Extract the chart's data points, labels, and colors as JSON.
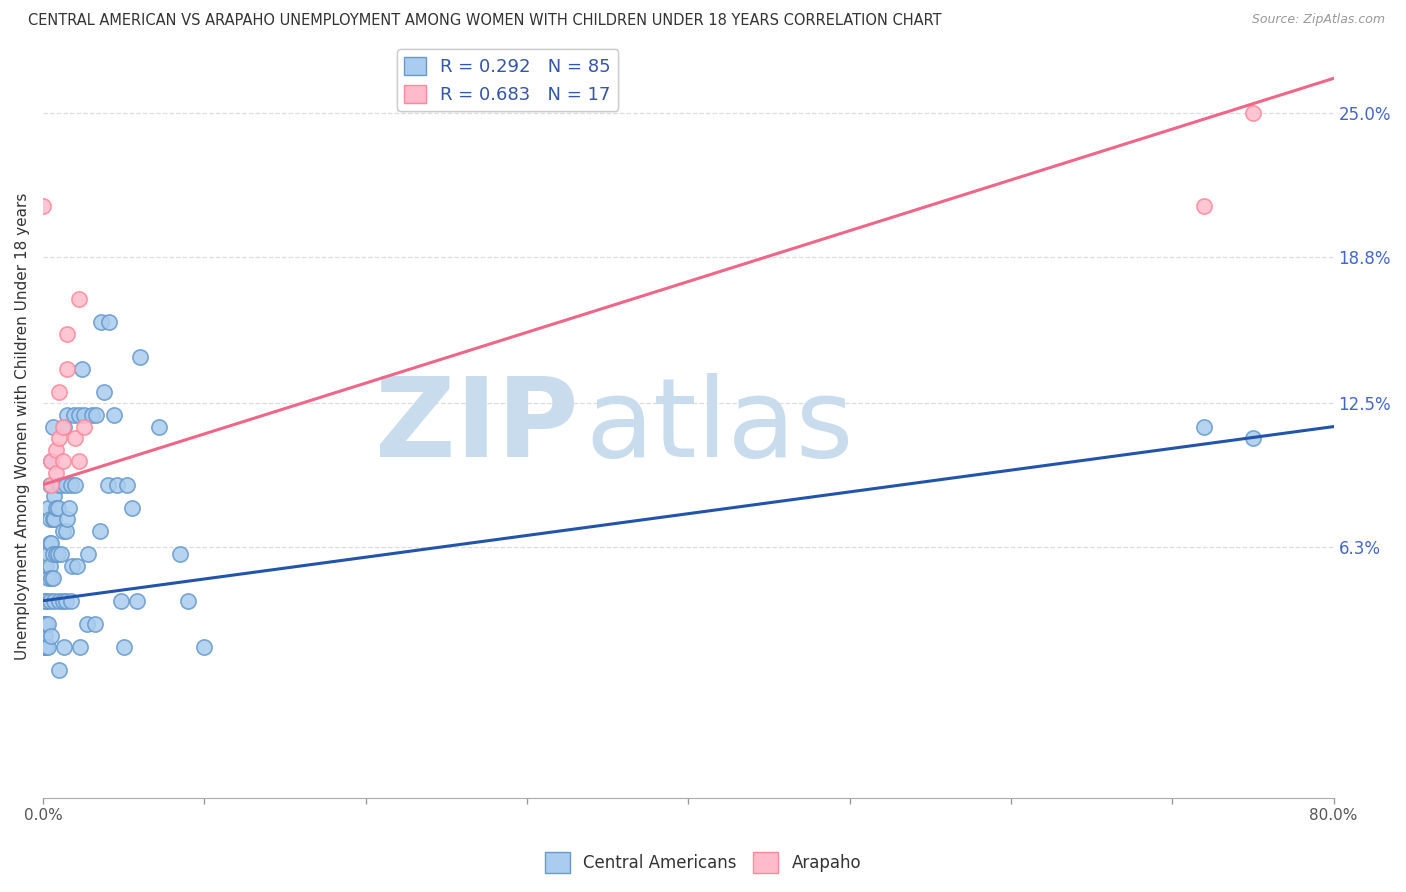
{
  "title": "CENTRAL AMERICAN VS ARAPAHO UNEMPLOYMENT AMONG WOMEN WITH CHILDREN UNDER 18 YEARS CORRELATION CHART",
  "source": "Source: ZipAtlas.com",
  "ylabel": "Unemployment Among Women with Children Under 18 years",
  "ytick_labels": [
    "6.3%",
    "12.5%",
    "18.8%",
    "25.0%"
  ],
  "ytick_values": [
    0.063,
    0.125,
    0.188,
    0.25
  ],
  "xlim": [
    0.0,
    0.8
  ],
  "ylim": [
    -0.045,
    0.275
  ],
  "color_blue": "#AACCEE",
  "color_blue_edge": "#6699CC",
  "color_pink": "#FFBBCC",
  "color_pink_edge": "#FF8899",
  "line_blue": "#2255AA",
  "line_pink": "#EE6688",
  "blue_trend_x": [
    0.0,
    0.8
  ],
  "blue_trend_y": [
    0.04,
    0.115
  ],
  "pink_trend_x": [
    0.0,
    0.8
  ],
  "pink_trend_y": [
    0.09,
    0.265
  ],
  "central_american_x": [
    0.0,
    0.0,
    0.0,
    0.001,
    0.001,
    0.001,
    0.001,
    0.002,
    0.002,
    0.002,
    0.002,
    0.003,
    0.003,
    0.003,
    0.003,
    0.003,
    0.004,
    0.004,
    0.004,
    0.004,
    0.004,
    0.005,
    0.005,
    0.005,
    0.005,
    0.006,
    0.006,
    0.006,
    0.006,
    0.007,
    0.007,
    0.007,
    0.008,
    0.008,
    0.009,
    0.009,
    0.01,
    0.01,
    0.01,
    0.011,
    0.011,
    0.012,
    0.012,
    0.013,
    0.013,
    0.014,
    0.014,
    0.014,
    0.015,
    0.015,
    0.016,
    0.017,
    0.017,
    0.018,
    0.019,
    0.02,
    0.021,
    0.022,
    0.023,
    0.024,
    0.025,
    0.027,
    0.028,
    0.03,
    0.032,
    0.033,
    0.035,
    0.036,
    0.038,
    0.04,
    0.041,
    0.044,
    0.046,
    0.048,
    0.05,
    0.052,
    0.055,
    0.058,
    0.06,
    0.072,
    0.085,
    0.09,
    0.1,
    0.72,
    0.75
  ],
  "central_american_y": [
    0.02,
    0.025,
    0.03,
    0.02,
    0.025,
    0.03,
    0.04,
    0.02,
    0.03,
    0.04,
    0.055,
    0.02,
    0.03,
    0.05,
    0.06,
    0.08,
    0.04,
    0.055,
    0.065,
    0.075,
    0.09,
    0.025,
    0.05,
    0.065,
    0.1,
    0.05,
    0.06,
    0.075,
    0.115,
    0.04,
    0.075,
    0.085,
    0.06,
    0.08,
    0.06,
    0.08,
    0.01,
    0.04,
    0.09,
    0.06,
    0.09,
    0.04,
    0.07,
    0.02,
    0.115,
    0.04,
    0.07,
    0.09,
    0.075,
    0.12,
    0.08,
    0.04,
    0.09,
    0.055,
    0.12,
    0.09,
    0.055,
    0.12,
    0.02,
    0.14,
    0.12,
    0.03,
    0.06,
    0.12,
    0.03,
    0.12,
    0.07,
    0.16,
    0.13,
    0.09,
    0.16,
    0.12,
    0.09,
    0.04,
    0.02,
    0.09,
    0.08,
    0.04,
    0.145,
    0.115,
    0.06,
    0.04,
    0.02,
    0.115,
    0.11
  ],
  "arapaho_x": [
    0.0,
    0.005,
    0.005,
    0.008,
    0.008,
    0.01,
    0.01,
    0.012,
    0.012,
    0.015,
    0.015,
    0.02,
    0.022,
    0.022,
    0.025,
    0.72,
    0.75
  ],
  "arapaho_y": [
    0.21,
    0.09,
    0.1,
    0.095,
    0.105,
    0.11,
    0.13,
    0.1,
    0.115,
    0.14,
    0.155,
    0.11,
    0.1,
    0.17,
    0.115,
    0.21,
    0.25
  ],
  "watermark_zip_color": "#DDEEFF",
  "watermark_atlas_color": "#BBDDFF",
  "grid_color": "#DDDDDD",
  "right_tick_color": "#4466CC"
}
